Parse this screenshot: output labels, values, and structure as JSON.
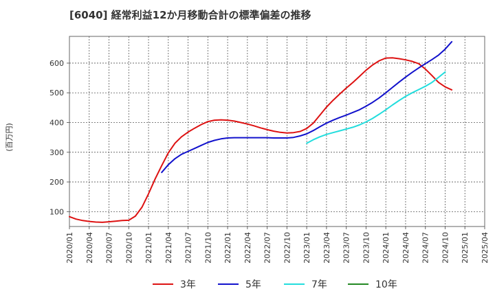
{
  "chart_data": {
    "type": "line",
    "title": "[6040]  経常利益12か月移動合計の標準偏差の推移",
    "ylabel": "(百万円)",
    "xlabel": "",
    "ylim": [
      50,
      690
    ],
    "yticks": [
      100,
      200,
      300,
      400,
      500,
      600
    ],
    "xlim": [
      "2020-01",
      "2025-04"
    ],
    "xticks": [
      "2020/01",
      "2020/04",
      "2020/07",
      "2020/10",
      "2021/01",
      "2021/04",
      "2021/07",
      "2021/10",
      "2022/01",
      "2022/04",
      "2022/07",
      "2022/10",
      "2023/01",
      "2023/04",
      "2023/07",
      "2023/10",
      "2024/01",
      "2024/04",
      "2024/07",
      "2024/10",
      "2025/01",
      "2025/04"
    ],
    "grid": true,
    "legend_position": "bottom",
    "series": [
      {
        "name": "3年",
        "color": "#dd1111",
        "points": [
          [
            "2020-01",
            83
          ],
          [
            "2020-02",
            75
          ],
          [
            "2020-03",
            70
          ],
          [
            "2020-04",
            67
          ],
          [
            "2020-05",
            65
          ],
          [
            "2020-06",
            64
          ],
          [
            "2020-07",
            66
          ],
          [
            "2020-08",
            68
          ],
          [
            "2020-09",
            70
          ],
          [
            "2020-10",
            71
          ],
          [
            "2020-11",
            85
          ],
          [
            "2020-12",
            115
          ],
          [
            "2021-01",
            160
          ],
          [
            "2021-02",
            210
          ],
          [
            "2021-03",
            255
          ],
          [
            "2021-04",
            298
          ],
          [
            "2021-05",
            330
          ],
          [
            "2021-06",
            352
          ],
          [
            "2021-07",
            368
          ],
          [
            "2021-08",
            381
          ],
          [
            "2021-09",
            393
          ],
          [
            "2021-10",
            403
          ],
          [
            "2021-11",
            408
          ],
          [
            "2021-12",
            409
          ],
          [
            "2022-01",
            408
          ],
          [
            "2022-02",
            405
          ],
          [
            "2022-03",
            400
          ],
          [
            "2022-04",
            395
          ],
          [
            "2022-05",
            389
          ],
          [
            "2022-06",
            382
          ],
          [
            "2022-07",
            376
          ],
          [
            "2022-08",
            371
          ],
          [
            "2022-09",
            367
          ],
          [
            "2022-10",
            365
          ],
          [
            "2022-11",
            366
          ],
          [
            "2022-12",
            370
          ],
          [
            "2023-01",
            380
          ],
          [
            "2023-02",
            398
          ],
          [
            "2023-03",
            425
          ],
          [
            "2023-04",
            452
          ],
          [
            "2023-05",
            475
          ],
          [
            "2023-06",
            496
          ],
          [
            "2023-07",
            516
          ],
          [
            "2023-08",
            535
          ],
          [
            "2023-09",
            555
          ],
          [
            "2023-10",
            576
          ],
          [
            "2023-11",
            594
          ],
          [
            "2023-12",
            608
          ],
          [
            "2024-01",
            617
          ],
          [
            "2024-02",
            618
          ],
          [
            "2024-03",
            615
          ],
          [
            "2024-04",
            611
          ],
          [
            "2024-05",
            606
          ],
          [
            "2024-06",
            598
          ],
          [
            "2024-07",
            580
          ],
          [
            "2024-08",
            558
          ],
          [
            "2024-09",
            535
          ],
          [
            "2024-10",
            520
          ],
          [
            "2024-11",
            510
          ]
        ]
      },
      {
        "name": "5年",
        "color": "#1111cc",
        "points": [
          [
            "2021-03",
            232
          ],
          [
            "2021-04",
            258
          ],
          [
            "2021-05",
            278
          ],
          [
            "2021-06",
            293
          ],
          [
            "2021-07",
            303
          ],
          [
            "2021-08",
            313
          ],
          [
            "2021-09",
            323
          ],
          [
            "2021-10",
            333
          ],
          [
            "2021-11",
            340
          ],
          [
            "2021-12",
            345
          ],
          [
            "2022-01",
            348
          ],
          [
            "2022-02",
            349
          ],
          [
            "2022-03",
            349
          ],
          [
            "2022-04",
            349
          ],
          [
            "2022-05",
            349
          ],
          [
            "2022-06",
            349
          ],
          [
            "2022-07",
            349
          ],
          [
            "2022-08",
            348
          ],
          [
            "2022-09",
            348
          ],
          [
            "2022-10",
            348
          ],
          [
            "2022-11",
            350
          ],
          [
            "2022-12",
            355
          ],
          [
            "2023-01",
            362
          ],
          [
            "2023-02",
            373
          ],
          [
            "2023-03",
            386
          ],
          [
            "2023-04",
            398
          ],
          [
            "2023-05",
            408
          ],
          [
            "2023-06",
            417
          ],
          [
            "2023-07",
            425
          ],
          [
            "2023-08",
            434
          ],
          [
            "2023-09",
            443
          ],
          [
            "2023-10",
            455
          ],
          [
            "2023-11",
            468
          ],
          [
            "2023-12",
            483
          ],
          [
            "2024-01",
            500
          ],
          [
            "2024-02",
            518
          ],
          [
            "2024-03",
            536
          ],
          [
            "2024-04",
            553
          ],
          [
            "2024-05",
            569
          ],
          [
            "2024-06",
            584
          ],
          [
            "2024-07",
            598
          ],
          [
            "2024-08",
            612
          ],
          [
            "2024-09",
            627
          ],
          [
            "2024-10",
            647
          ],
          [
            "2024-11",
            672
          ]
        ]
      },
      {
        "name": "7年",
        "color": "#22dddd",
        "points": [
          [
            "2023-01",
            330
          ],
          [
            "2023-02",
            342
          ],
          [
            "2023-03",
            352
          ],
          [
            "2023-04",
            360
          ],
          [
            "2023-05",
            366
          ],
          [
            "2023-06",
            372
          ],
          [
            "2023-07",
            378
          ],
          [
            "2023-08",
            384
          ],
          [
            "2023-09",
            392
          ],
          [
            "2023-10",
            402
          ],
          [
            "2023-11",
            414
          ],
          [
            "2023-12",
            428
          ],
          [
            "2024-01",
            443
          ],
          [
            "2024-02",
            459
          ],
          [
            "2024-03",
            474
          ],
          [
            "2024-04",
            488
          ],
          [
            "2024-05",
            500
          ],
          [
            "2024-06",
            511
          ],
          [
            "2024-07",
            522
          ],
          [
            "2024-08",
            535
          ],
          [
            "2024-09",
            552
          ],
          [
            "2024-10",
            570
          ]
        ]
      },
      {
        "name": "10年",
        "color": "#228822",
        "points": []
      }
    ]
  }
}
